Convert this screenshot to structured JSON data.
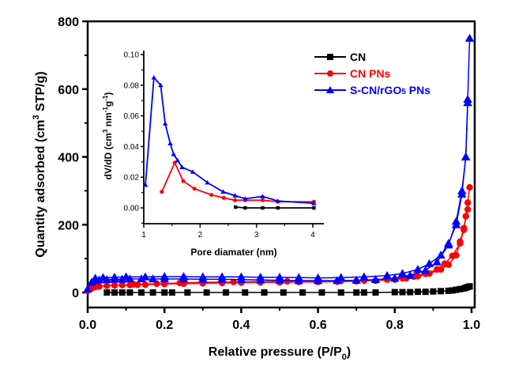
{
  "chart_data": [
    {
      "id": "main",
      "type": "line",
      "title": "",
      "xlabel": "Relative pressure (P/P0)",
      "xlabel_parts": {
        "main": "Relative pressure (P/P",
        "sub": "0",
        "close": ")"
      },
      "ylabel": "Quantity adsorbed (cm3 STP/g)",
      "ylabel_parts": {
        "pre": "Quantity adsorbed (cm",
        "sup": "3",
        "post": " STP/g)"
      },
      "xlim": [
        0.0,
        1.0
      ],
      "ylim": [
        -60,
        800
      ],
      "xticks": [
        "0.0",
        "0.2",
        "0.4",
        "0.6",
        "0.8",
        "1.0"
      ],
      "xtick_values": [
        0.0,
        0.2,
        0.4,
        0.6,
        0.8,
        1.0
      ],
      "yticks": [
        "0",
        "200",
        "400",
        "600",
        "800"
      ],
      "ytick_values": [
        0,
        200,
        400,
        600,
        800
      ],
      "grid": false,
      "legend": {
        "placement": "top-right",
        "entries": [
          {
            "label": "CN",
            "color": "#000000",
            "marker": "square"
          },
          {
            "label": "CN PNs",
            "color": "#ff0000",
            "marker": "circle"
          },
          {
            "label": "S-CN/rGO5 PNs",
            "color": "#0000ff",
            "marker": "triangle"
          }
        ]
      },
      "series": [
        {
          "name": "CN",
          "color": "#000000",
          "marker": "square",
          "x": [
            0.05,
            0.07,
            0.09,
            0.11,
            0.14,
            0.17,
            0.2,
            0.22,
            0.26,
            0.31,
            0.36,
            0.41,
            0.46,
            0.51,
            0.56,
            0.61,
            0.66,
            0.7,
            0.72,
            0.75,
            0.8,
            0.82,
            0.84,
            0.86,
            0.88,
            0.9,
            0.92,
            0.94,
            0.95,
            0.96,
            0.97,
            0.98,
            0.985,
            0.99,
            0.995
          ],
          "y": [
            0,
            0,
            0,
            0,
            0,
            0,
            0,
            0,
            0,
            0,
            0,
            0,
            0,
            0,
            0,
            0,
            0,
            0,
            0,
            0,
            1,
            1,
            1,
            2,
            2,
            3,
            4,
            5,
            6,
            8,
            10,
            12,
            14,
            16,
            18
          ]
        },
        {
          "name": "CN PNs (adsorption)",
          "color": "#ff0000",
          "marker": "circle",
          "x": [
            0.0,
            0.01,
            0.02,
            0.03,
            0.05,
            0.07,
            0.09,
            0.11,
            0.13,
            0.15,
            0.2,
            0.25,
            0.3,
            0.35,
            0.4,
            0.45,
            0.5,
            0.55,
            0.6,
            0.65,
            0.7,
            0.75,
            0.8,
            0.83,
            0.86,
            0.89,
            0.92,
            0.94,
            0.96,
            0.97,
            0.98,
            0.99
          ],
          "y": [
            5,
            12,
            16,
            18,
            20,
            21,
            22,
            22,
            23,
            23,
            25,
            26,
            27,
            28,
            29,
            30,
            30,
            31,
            31,
            32,
            33,
            35,
            38,
            42,
            48,
            56,
            68,
            82,
            110,
            150,
            190,
            245
          ]
        },
        {
          "name": "CN PNs (desorption)",
          "color": "#ff0000",
          "marker": "circle",
          "x": [
            0.995,
            0.99,
            0.985,
            0.98,
            0.97,
            0.95,
            0.93,
            0.91,
            0.88,
            0.85,
            0.82,
            0.78,
            0.72,
            0.66,
            0.6,
            0.52,
            0.45,
            0.38,
            0.3,
            0.24,
            0.18,
            0.12
          ],
          "y": [
            310,
            265,
            225,
            185,
            145,
            108,
            85,
            68,
            55,
            47,
            42,
            38,
            35,
            34,
            33,
            33,
            32,
            31,
            30,
            28,
            26,
            24
          ]
        },
        {
          "name": "S-CN/rGO5 PNs (adsorption)",
          "color": "#0000ff",
          "marker": "triangle",
          "x": [
            0.0,
            0.01,
            0.02,
            0.03,
            0.05,
            0.07,
            0.09,
            0.11,
            0.14,
            0.17,
            0.2,
            0.25,
            0.3,
            0.35,
            0.4,
            0.45,
            0.5,
            0.55,
            0.6,
            0.65,
            0.7,
            0.75,
            0.8,
            0.84,
            0.88,
            0.91,
            0.94,
            0.96,
            0.975,
            0.985,
            0.99
          ],
          "y": [
            10,
            30,
            35,
            37,
            38,
            39,
            39,
            40,
            40,
            40,
            40,
            40,
            39,
            39,
            38,
            37,
            36,
            35,
            35,
            35,
            36,
            38,
            42,
            50,
            65,
            90,
            140,
            210,
            300,
            400,
            560
          ]
        },
        {
          "name": "S-CN/rGO5 PNs (desorption)",
          "color": "#0000ff",
          "marker": "triangle",
          "x": [
            0.995,
            0.99,
            0.985,
            0.975,
            0.96,
            0.94,
            0.92,
            0.89,
            0.86,
            0.82,
            0.78,
            0.72,
            0.66,
            0.6,
            0.55,
            0.5,
            0.45,
            0.4,
            0.35,
            0.3,
            0.25,
            0.2,
            0.15,
            0.1,
            0.07,
            0.04,
            0.02
          ],
          "y": [
            750,
            570,
            400,
            290,
            200,
            145,
            110,
            85,
            68,
            56,
            50,
            46,
            44,
            43,
            44,
            45,
            45,
            46,
            46,
            46,
            47,
            47,
            46,
            46,
            45,
            44,
            42
          ]
        }
      ]
    },
    {
      "id": "inset",
      "type": "line",
      "title": "",
      "xlabel": "Pore diamater (nm)",
      "ylabel": "dV/dD (cm3 nm-1 g-1)",
      "ylabel_parts": {
        "a": "dV/dD (cm",
        "s1": "3",
        "b": " nm",
        "s2": "-1",
        "c": "g",
        "s3": "-1",
        "d": ")"
      },
      "xlim": [
        1,
        4.06
      ],
      "ylim": [
        -0.01,
        0.1
      ],
      "xticks": [
        "1",
        "2",
        "3",
        "4"
      ],
      "xtick_values": [
        1,
        2,
        3,
        4
      ],
      "yticks": [
        "0.00",
        "0.02",
        "0.04",
        "0.06",
        "0.08",
        "0.10"
      ],
      "ytick_values": [
        0.0,
        0.02,
        0.04,
        0.06,
        0.08,
        0.1
      ],
      "grid": false,
      "series": [
        {
          "name": "CN",
          "color": "#000000",
          "marker": "square",
          "x": [
            2.63,
            2.8,
            3.11,
            3.38,
            4.02
          ],
          "y": [
            0.0005,
            0.0,
            0.0,
            0.0,
            0.0
          ]
        },
        {
          "name": "CN PNs",
          "color": "#ff0000",
          "marker": "circle",
          "x": [
            1.32,
            1.55,
            1.7,
            1.9,
            2.2,
            2.42,
            2.62,
            2.8,
            3.11,
            3.38,
            4.02
          ],
          "y": [
            0.0105,
            0.0295,
            0.0175,
            0.0125,
            0.0085,
            0.0065,
            0.005,
            0.005,
            0.005,
            0.004,
            0.004
          ]
        },
        {
          "name": "S-CN/rGO5 PNs",
          "color": "#0000ff",
          "marker": "triangle",
          "x": [
            1.03,
            1.18,
            1.3,
            1.38,
            1.47,
            1.53,
            1.6,
            1.68,
            1.87,
            2.13,
            2.41,
            2.62,
            2.8,
            3.11,
            3.38,
            4.02
          ],
          "y": [
            0.015,
            0.085,
            0.08,
            0.055,
            0.042,
            0.035,
            0.031,
            0.0265,
            0.0235,
            0.0165,
            0.0105,
            0.008,
            0.006,
            0.0075,
            0.0045,
            0.003
          ]
        }
      ]
    }
  ]
}
